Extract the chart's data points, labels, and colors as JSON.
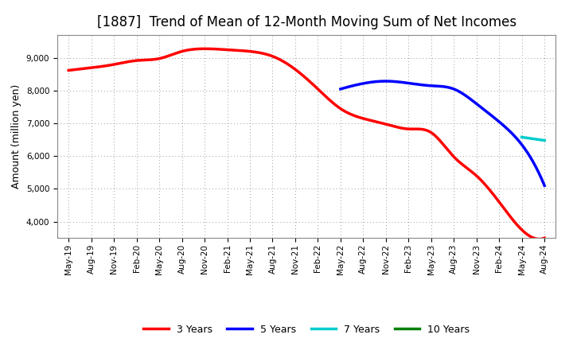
{
  "title": "[1887]  Trend of Mean of 12-Month Moving Sum of Net Incomes",
  "ylabel": "Amount (million yen)",
  "background_color": "#ffffff",
  "grid_color": "#aaaaaa",
  "ylim": [
    3500,
    9700
  ],
  "yticks": [
    4000,
    5000,
    6000,
    7000,
    8000,
    9000
  ],
  "series": {
    "3years": {
      "color": "#ff0000",
      "label": "3 Years",
      "points": [
        [
          "May-19",
          8620
        ],
        [
          "Aug-19",
          8700
        ],
        [
          "Nov-19",
          8800
        ],
        [
          "Feb-20",
          8920
        ],
        [
          "May-20",
          8980
        ],
        [
          "Aug-20",
          9200
        ],
        [
          "Nov-20",
          9280
        ],
        [
          "Feb-21",
          9250
        ],
        [
          "May-21",
          9200
        ],
        [
          "Aug-21",
          9050
        ],
        [
          "Nov-21",
          8650
        ],
        [
          "Feb-22",
          8050
        ],
        [
          "May-22",
          7450
        ],
        [
          "Aug-22",
          7150
        ],
        [
          "Nov-22",
          6980
        ],
        [
          "Feb-23",
          6830
        ],
        [
          "May-23",
          6720
        ],
        [
          "Aug-23",
          5980
        ],
        [
          "Nov-23",
          5400
        ],
        [
          "Feb-24",
          4600
        ],
        [
          "May-24",
          3750
        ],
        [
          "Aug-24",
          3500
        ]
      ]
    },
    "5years": {
      "color": "#0000ff",
      "label": "5 Years",
      "points": [
        [
          "May-22",
          8050
        ],
        [
          "Aug-22",
          8220
        ],
        [
          "Nov-22",
          8290
        ],
        [
          "Feb-23",
          8230
        ],
        [
          "May-23",
          8150
        ],
        [
          "Aug-23",
          8050
        ],
        [
          "Nov-23",
          7600
        ],
        [
          "Feb-24",
          7050
        ],
        [
          "May-24",
          6350
        ],
        [
          "Aug-24",
          5100
        ]
      ]
    },
    "7years": {
      "color": "#00cccc",
      "label": "7 Years",
      "points": [
        [
          "May-24",
          6580
        ],
        [
          "Aug-24",
          6480
        ]
      ]
    },
    "10years": {
      "color": "#008000",
      "label": "10 Years",
      "points": []
    }
  },
  "x_labels": [
    "May-19",
    "Aug-19",
    "Nov-19",
    "Feb-20",
    "May-20",
    "Aug-20",
    "Nov-20",
    "Feb-21",
    "May-21",
    "Aug-21",
    "Nov-21",
    "Feb-22",
    "May-22",
    "Aug-22",
    "Nov-22",
    "Feb-23",
    "May-23",
    "Aug-23",
    "Nov-23",
    "Feb-24",
    "May-24",
    "Aug-24"
  ],
  "legend_entries": [
    {
      "label": "3 Years",
      "color": "#ff0000"
    },
    {
      "label": "5 Years",
      "color": "#0000ff"
    },
    {
      "label": "7 Years",
      "color": "#00cccc"
    },
    {
      "label": "10 Years",
      "color": "#008000"
    }
  ],
  "title_fontsize": 12,
  "tick_fontsize": 7.5,
  "ylabel_fontsize": 9,
  "linewidth": 2.5
}
